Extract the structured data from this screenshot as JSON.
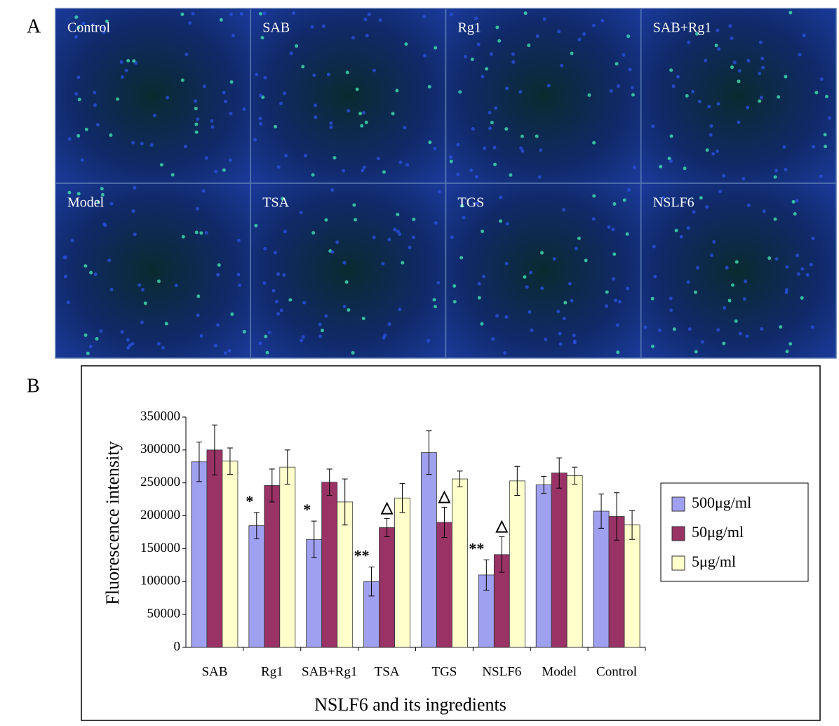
{
  "panel_a": {
    "label": "A",
    "panels": [
      "Control",
      "SAB",
      "Rg1",
      "SAB+Rg1",
      "Model",
      "TSA",
      "TGS",
      "NSLF6"
    ]
  },
  "panel_b_label": "B",
  "chart_data": {
    "type": "bar",
    "y_label": "Fluorescence intensity",
    "x_label": "NSLF6 and its ingredients",
    "categories": [
      "SAB",
      "Rg1",
      "SAB+Rg1",
      "TSA",
      "TGS",
      "NSLF6",
      "Model",
      "Control"
    ],
    "series": [
      {
        "name": "500μg/ml",
        "color": "#a0a0f0",
        "values": [
          282000,
          185000,
          164000,
          100000,
          296000,
          110000,
          247000,
          207000
        ],
        "errors": [
          30000,
          20000,
          28000,
          22000,
          33000,
          23000,
          13000,
          26000
        ],
        "markers": [
          null,
          "*",
          "*",
          "**",
          null,
          "**",
          null,
          null
        ]
      },
      {
        "name": "50μg/ml",
        "color": "#993366",
        "values": [
          300000,
          246000,
          251000,
          182000,
          190000,
          141000,
          265000,
          199000
        ],
        "errors": [
          38000,
          25000,
          20000,
          14000,
          23000,
          27000,
          23000,
          36000
        ],
        "markers": [
          null,
          null,
          null,
          "△",
          "△",
          "△",
          null,
          null
        ]
      },
      {
        "name": "5μg/ml",
        "color": "#ffffcc",
        "values": [
          283000,
          274000,
          221000,
          227000,
          256000,
          253000,
          261000,
          186000
        ],
        "errors": [
          20000,
          26000,
          35000,
          22000,
          12000,
          22000,
          13000,
          22000
        ],
        "markers": [
          null,
          null,
          null,
          null,
          null,
          null,
          null,
          null
        ]
      }
    ],
    "ylim": [
      0,
      350000
    ],
    "yticks": [
      0,
      50000,
      100000,
      150000,
      200000,
      250000,
      300000,
      350000
    ],
    "legend": "right"
  }
}
